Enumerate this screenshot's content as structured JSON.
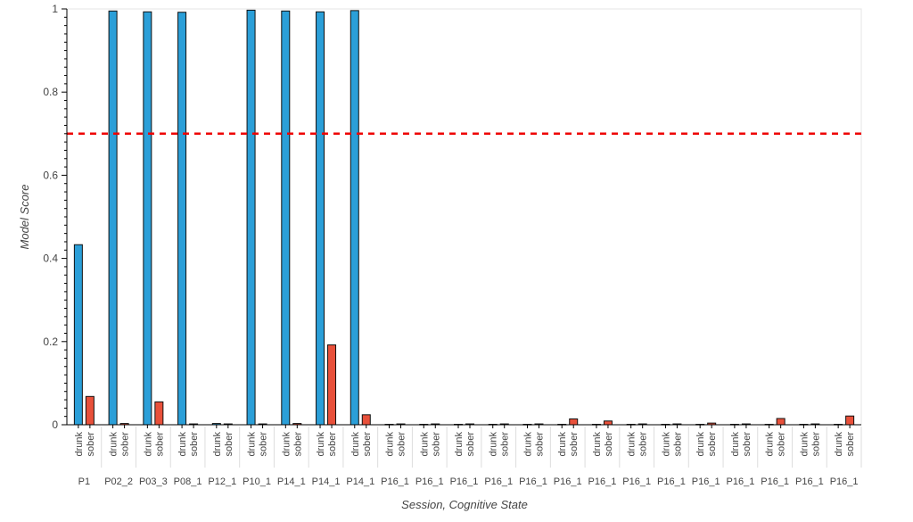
{
  "chart_data": {
    "type": "bar",
    "xlabel": "Session, Cognitive State",
    "ylabel": "Model Score",
    "ylim": [
      0,
      1
    ],
    "yticks": [
      "0",
      "0.2",
      "0.4",
      "0.6",
      "0.8",
      "1"
    ],
    "threshold": 0.7,
    "grid": false,
    "states": [
      "drunk",
      "sober"
    ],
    "groups": [
      {
        "drunk": 0.433,
        "sober": 0.068
      },
      {
        "drunk": 0.995,
        "sober": 0.003
      },
      {
        "drunk": 0.993,
        "sober": 0.055
      },
      {
        "drunk": 0.992,
        "sober": 0.002
      },
      {
        "drunk": 0.003,
        "sober": 0.002
      },
      {
        "drunk": 0.997,
        "sober": 0.002
      },
      {
        "drunk": 0.995,
        "sober": 0.003
      },
      {
        "drunk": 0.993,
        "sober": 0.192
      },
      {
        "drunk": 0.996,
        "sober": 0.024
      },
      {
        "drunk": 0.001,
        "sober": 0.002
      },
      {
        "drunk": 0.001,
        "sober": 0.002
      },
      {
        "drunk": 0.001,
        "sober": 0.002
      },
      {
        "drunk": 0.001,
        "sober": 0.002
      },
      {
        "drunk": 0.001,
        "sober": 0.002
      },
      {
        "drunk": 0.001,
        "sober": 0.014
      },
      {
        "drunk": 0.001,
        "sober": 0.009
      },
      {
        "drunk": 0.001,
        "sober": 0.002
      },
      {
        "drunk": 0.001,
        "sober": 0.002
      },
      {
        "drunk": 0.001,
        "sober": 0.004
      },
      {
        "drunk": 0.001,
        "sober": 0.002
      },
      {
        "drunk": 0.001,
        "sober": 0.015
      },
      {
        "drunk": 0.001,
        "sober": 0.002
      },
      {
        "drunk": 0.001,
        "sober": 0.021
      }
    ],
    "group_labels_visible": [
      "P1",
      "P02_2",
      "P03_3",
      "P08_1",
      "P12_1",
      "P10_1",
      "P14_1",
      "P14_1",
      "P14_1",
      "P16_1",
      "P16_1",
      "P16_1",
      "P16_1",
      "P16_1",
      "P16_1",
      "P16_1",
      "P16_1",
      "P16_1",
      "P16_1",
      "P16_1",
      "P16_1",
      "P16_1",
      "P16_1"
    ],
    "colors": {
      "drunk": "#2b9fd8",
      "sober": "#e8503a",
      "threshold": "#ee0000"
    }
  }
}
